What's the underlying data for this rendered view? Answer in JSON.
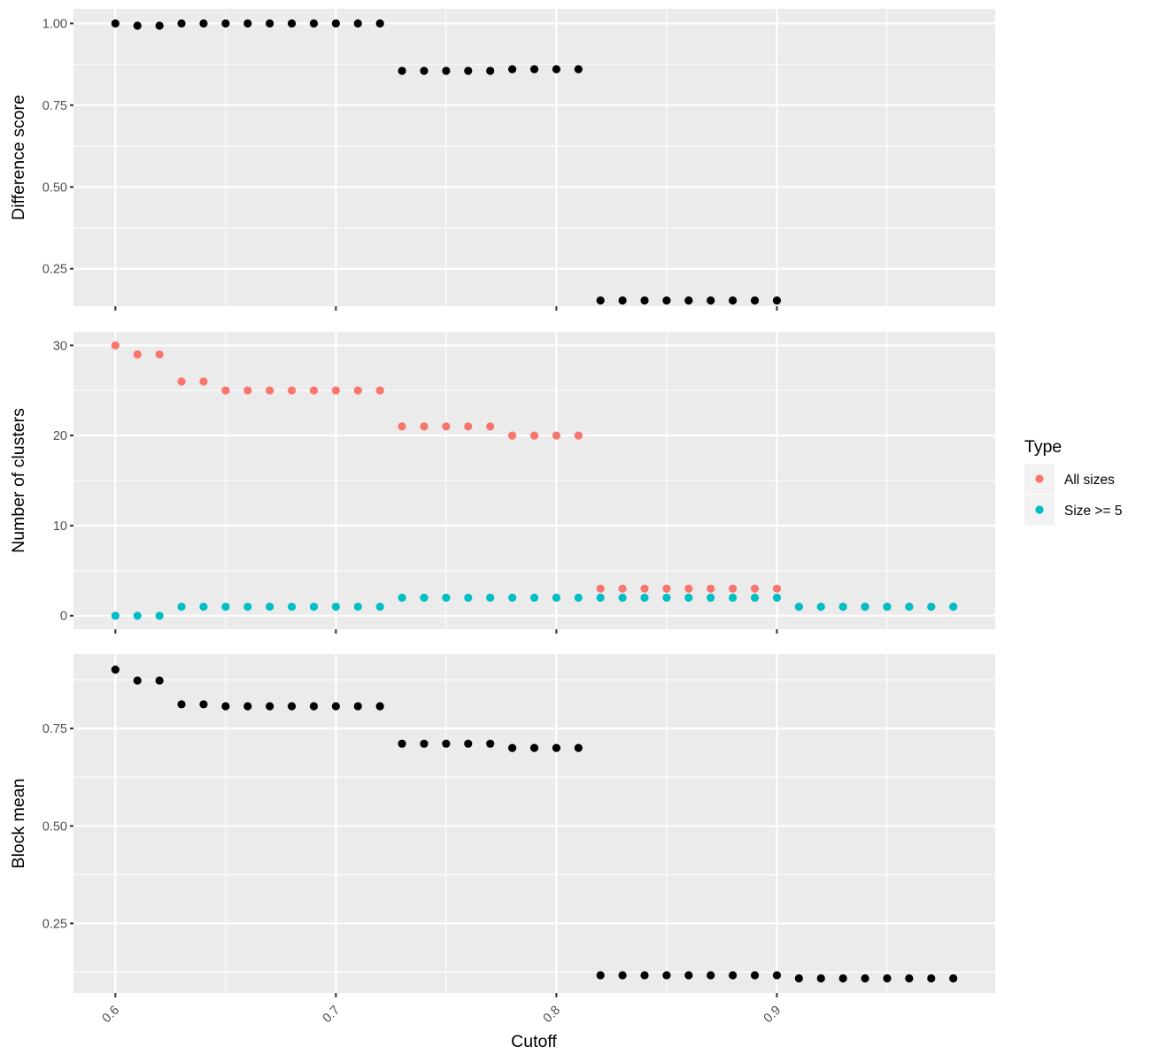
{
  "chart_data": {
    "type": "scatter",
    "xlabel": "Cutoff",
    "x_ticks": [
      0.6,
      0.7,
      0.8,
      0.9
    ],
    "xlim": [
      0.581,
      0.999
    ],
    "legend": {
      "title": "Type",
      "position": "right",
      "entries": [
        {
          "label": "All sizes",
          "color": "#F8766D"
        },
        {
          "label": "Size >= 5",
          "color": "#00BFC4"
        }
      ]
    },
    "panels": [
      {
        "ylabel": "Difference score",
        "ylim": [
          0.1355,
          1.0445
        ],
        "y_ticks": [
          0.25,
          0.5,
          0.75,
          1.0
        ],
        "y_tick_labels": [
          "0.25",
          "0.50",
          "0.75",
          "1.00"
        ],
        "series": [
          {
            "color": "#000000",
            "points": [
              [
                0.6,
                1.0
              ],
              [
                0.61,
                0.993
              ],
              [
                0.62,
                0.993
              ],
              [
                0.63,
                1.0
              ],
              [
                0.64,
                1.0
              ],
              [
                0.65,
                1.0
              ],
              [
                0.66,
                1.0
              ],
              [
                0.67,
                1.0
              ],
              [
                0.68,
                1.0
              ],
              [
                0.69,
                1.0
              ],
              [
                0.7,
                1.0
              ],
              [
                0.71,
                1.0
              ],
              [
                0.72,
                1.0
              ],
              [
                0.73,
                0.855
              ],
              [
                0.74,
                0.855
              ],
              [
                0.75,
                0.855
              ],
              [
                0.76,
                0.855
              ],
              [
                0.77,
                0.855
              ],
              [
                0.78,
                0.86
              ],
              [
                0.79,
                0.86
              ],
              [
                0.8,
                0.86
              ],
              [
                0.81,
                0.86
              ],
              [
                0.82,
                0.153
              ],
              [
                0.83,
                0.153
              ],
              [
                0.84,
                0.153
              ],
              [
                0.85,
                0.153
              ],
              [
                0.86,
                0.153
              ],
              [
                0.87,
                0.153
              ],
              [
                0.88,
                0.153
              ],
              [
                0.89,
                0.153
              ],
              [
                0.9,
                0.153
              ]
            ]
          }
        ]
      },
      {
        "ylabel": "Number of clusters",
        "ylim": [
          -1.5,
          31.5
        ],
        "y_ticks": [
          0,
          10,
          20,
          30
        ],
        "y_tick_labels": [
          "0",
          "10",
          "20",
          "30"
        ],
        "series": [
          {
            "name": "All sizes",
            "color": "#F8766D",
            "points": [
              [
                0.6,
                30
              ],
              [
                0.61,
                29
              ],
              [
                0.62,
                29
              ],
              [
                0.63,
                26
              ],
              [
                0.64,
                26
              ],
              [
                0.65,
                25
              ],
              [
                0.66,
                25
              ],
              [
                0.67,
                25
              ],
              [
                0.68,
                25
              ],
              [
                0.69,
                25
              ],
              [
                0.7,
                25
              ],
              [
                0.71,
                25
              ],
              [
                0.72,
                25
              ],
              [
                0.73,
                21
              ],
              [
                0.74,
                21
              ],
              [
                0.75,
                21
              ],
              [
                0.76,
                21
              ],
              [
                0.77,
                21
              ],
              [
                0.78,
                20
              ],
              [
                0.79,
                20
              ],
              [
                0.8,
                20
              ],
              [
                0.81,
                20
              ],
              [
                0.82,
                3
              ],
              [
                0.83,
                3
              ],
              [
                0.84,
                3
              ],
              [
                0.85,
                3
              ],
              [
                0.86,
                3
              ],
              [
                0.87,
                3
              ],
              [
                0.88,
                3
              ],
              [
                0.89,
                3
              ],
              [
                0.9,
                3
              ],
              [
                0.91,
                1
              ],
              [
                0.92,
                1
              ],
              [
                0.93,
                1
              ],
              [
                0.94,
                1
              ],
              [
                0.95,
                1
              ],
              [
                0.96,
                1
              ],
              [
                0.97,
                1
              ],
              [
                0.98,
                1
              ]
            ]
          },
          {
            "name": "Size >= 5",
            "color": "#00BFC4",
            "points": [
              [
                0.6,
                0
              ],
              [
                0.61,
                0
              ],
              [
                0.62,
                0
              ],
              [
                0.63,
                1
              ],
              [
                0.64,
                1
              ],
              [
                0.65,
                1
              ],
              [
                0.66,
                1
              ],
              [
                0.67,
                1
              ],
              [
                0.68,
                1
              ],
              [
                0.69,
                1
              ],
              [
                0.7,
                1
              ],
              [
                0.71,
                1
              ],
              [
                0.72,
                1
              ],
              [
                0.73,
                2
              ],
              [
                0.74,
                2
              ],
              [
                0.75,
                2
              ],
              [
                0.76,
                2
              ],
              [
                0.77,
                2
              ],
              [
                0.78,
                2
              ],
              [
                0.79,
                2
              ],
              [
                0.8,
                2
              ],
              [
                0.81,
                2
              ],
              [
                0.82,
                2
              ],
              [
                0.83,
                2
              ],
              [
                0.84,
                2
              ],
              [
                0.85,
                2
              ],
              [
                0.86,
                2
              ],
              [
                0.87,
                2
              ],
              [
                0.88,
                2
              ],
              [
                0.89,
                2
              ],
              [
                0.9,
                2
              ],
              [
                0.91,
                1
              ],
              [
                0.92,
                1
              ],
              [
                0.93,
                1
              ],
              [
                0.94,
                1
              ],
              [
                0.95,
                1
              ],
              [
                0.96,
                1
              ],
              [
                0.97,
                1
              ],
              [
                0.98,
                1
              ]
            ]
          }
        ]
      },
      {
        "ylabel": "Block mean",
        "ylim": [
          0.0715,
          0.941
        ],
        "y_ticks": [
          0.25,
          0.5,
          0.75
        ],
        "y_tick_labels": [
          "0.25",
          "0.50",
          "0.75"
        ],
        "series": [
          {
            "color": "#000000",
            "points": [
              [
                0.6,
                0.901
              ],
              [
                0.61,
                0.873
              ],
              [
                0.62,
                0.873
              ],
              [
                0.63,
                0.812
              ],
              [
                0.64,
                0.812
              ],
              [
                0.65,
                0.807
              ],
              [
                0.66,
                0.807
              ],
              [
                0.67,
                0.807
              ],
              [
                0.68,
                0.807
              ],
              [
                0.69,
                0.807
              ],
              [
                0.7,
                0.807
              ],
              [
                0.71,
                0.807
              ],
              [
                0.72,
                0.807
              ],
              [
                0.73,
                0.711
              ],
              [
                0.74,
                0.711
              ],
              [
                0.75,
                0.711
              ],
              [
                0.76,
                0.711
              ],
              [
                0.77,
                0.711
              ],
              [
                0.78,
                0.7
              ],
              [
                0.79,
                0.7
              ],
              [
                0.8,
                0.7
              ],
              [
                0.81,
                0.7
              ],
              [
                0.82,
                0.117
              ],
              [
                0.83,
                0.117
              ],
              [
                0.84,
                0.117
              ],
              [
                0.85,
                0.117
              ],
              [
                0.86,
                0.117
              ],
              [
                0.87,
                0.117
              ],
              [
                0.88,
                0.117
              ],
              [
                0.89,
                0.117
              ],
              [
                0.9,
                0.117
              ],
              [
                0.91,
                0.109
              ],
              [
                0.92,
                0.109
              ],
              [
                0.93,
                0.109
              ],
              [
                0.94,
                0.109
              ],
              [
                0.95,
                0.109
              ],
              [
                0.96,
                0.109
              ],
              [
                0.97,
                0.109
              ],
              [
                0.98,
                0.109
              ]
            ]
          }
        ]
      }
    ]
  }
}
